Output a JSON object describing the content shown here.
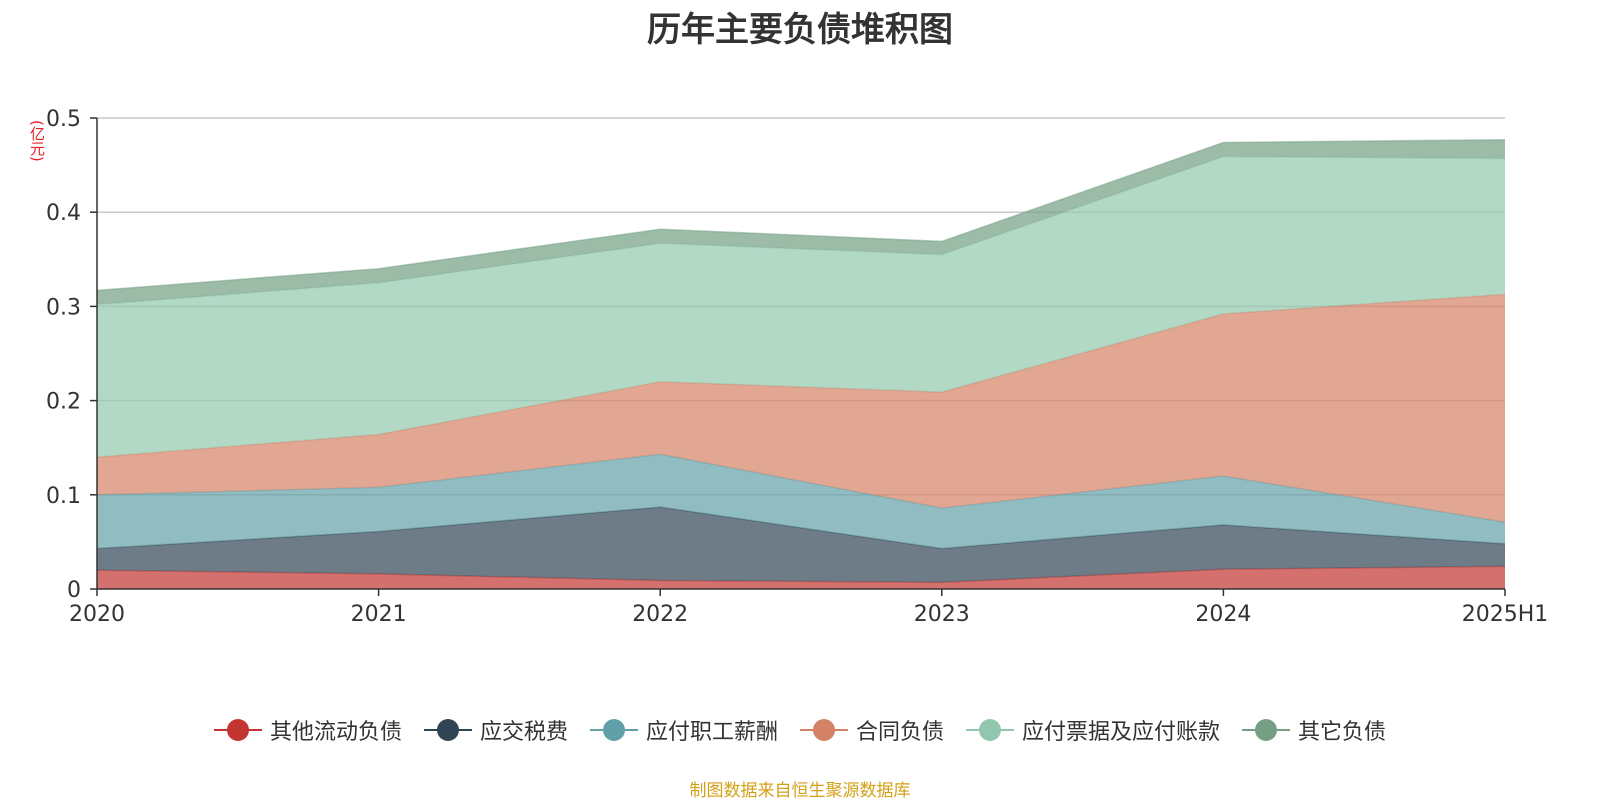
{
  "title": "历年主要负债堆积图",
  "unit_label": "(亿元)",
  "source": "制图数据来自恒生聚源数据库",
  "chart_data": {
    "type": "area",
    "stacked": true,
    "title": "历年主要负债堆积图",
    "ylabel": "(亿元)",
    "categories": [
      "2020",
      "2021",
      "2022",
      "2023",
      "2024",
      "2025H1"
    ],
    "ylim": [
      0,
      0.5
    ],
    "yticks": [
      "0",
      "0.1",
      "0.2",
      "0.3",
      "0.4",
      "0.5"
    ],
    "grid": true,
    "legend_position": "bottom",
    "series": [
      {
        "name": "其他流动负债",
        "color": "#c23531",
        "values": [
          0.02,
          0.016,
          0.009,
          0.007,
          0.021,
          0.024
        ]
      },
      {
        "name": "应交税费",
        "color": "#2f4554",
        "values": [
          0.023,
          0.045,
          0.078,
          0.036,
          0.047,
          0.024
        ]
      },
      {
        "name": "应付职工薪酬",
        "color": "#61a0a8",
        "values": [
          0.057,
          0.047,
          0.056,
          0.043,
          0.052,
          0.023
        ]
      },
      {
        "name": "合同负债",
        "color": "#d48265",
        "values": [
          0.04,
          0.056,
          0.077,
          0.123,
          0.172,
          0.242
        ]
      },
      {
        "name": "应付票据及应付账款",
        "color": "#91c7ae",
        "values": [
          0.162,
          0.161,
          0.147,
          0.146,
          0.167,
          0.144
        ]
      },
      {
        "name": "其它负债",
        "color": "#749f83",
        "values": [
          0.015,
          0.015,
          0.015,
          0.014,
          0.015,
          0.02
        ]
      }
    ]
  }
}
